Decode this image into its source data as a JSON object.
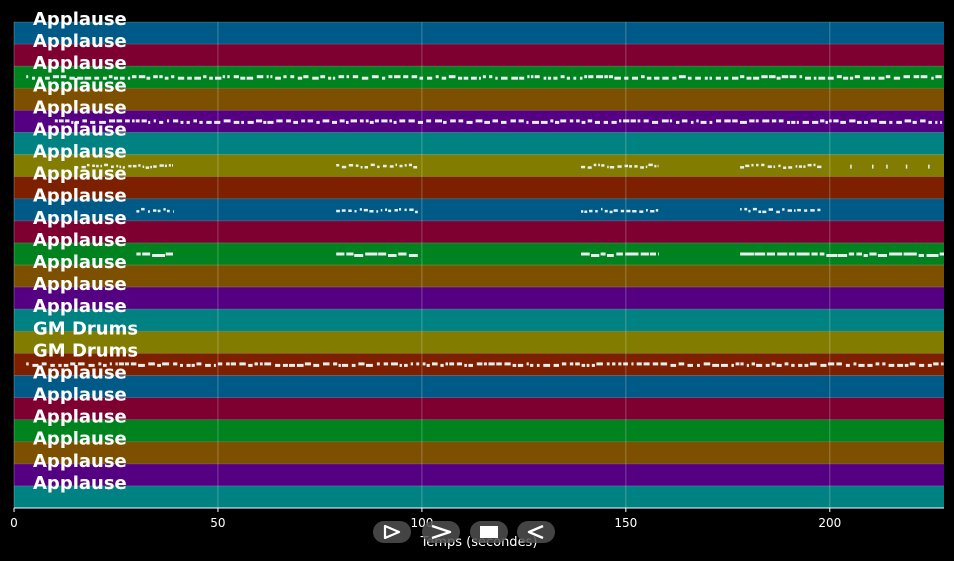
{
  "chart_data": {
    "type": "piano-roll",
    "xlabel": "Temps (secondes)",
    "xlim": [
      0,
      228
    ],
    "xticks": [
      0,
      50,
      100,
      150,
      200
    ],
    "tracks": [
      {
        "name": "Applause",
        "color": "#005a87"
      },
      {
        "name": "Applause",
        "color": "#7d0030"
      },
      {
        "name": "Applause",
        "color": "#00821e",
        "notes": [
          [
            3,
            228,
            "dense"
          ]
        ]
      },
      {
        "name": "Applause",
        "color": "#7d5000"
      },
      {
        "name": "Applause",
        "color": "#550082",
        "notes": [
          [
            10,
            228,
            "dense"
          ]
        ]
      },
      {
        "name": "Applause",
        "color": "#008282"
      },
      {
        "name": "Applause",
        "color": "#827d00",
        "notes": [
          [
            15,
            39,
            "sparse"
          ],
          [
            79,
            99,
            "sparse"
          ],
          [
            139,
            158,
            "sparse"
          ],
          [
            178,
            198,
            "sparse"
          ],
          [
            205,
            225,
            "dots"
          ]
        ]
      },
      {
        "name": "Applause",
        "color": "#7d2000"
      },
      {
        "name": "Applause",
        "color": "#005a87",
        "notes": [
          [
            30,
            39,
            "sparse"
          ],
          [
            79,
            99,
            "sparse"
          ],
          [
            139,
            158,
            "sparse"
          ],
          [
            178,
            198,
            "sparse"
          ]
        ]
      },
      {
        "name": "Applause",
        "color": "#7d0030"
      },
      {
        "name": "Applause",
        "color": "#00821e",
        "notes": [
          [
            30,
            39,
            "bars"
          ],
          [
            79,
            99,
            "bars"
          ],
          [
            139,
            158,
            "bars"
          ],
          [
            178,
            228,
            "bars"
          ]
        ]
      },
      {
        "name": "Applause",
        "color": "#7d5000"
      },
      {
        "name": "Applause",
        "color": "#550082"
      },
      {
        "name": "Applause",
        "color": "#008282"
      },
      {
        "name": "GM Drums",
        "color": "#827d00"
      },
      {
        "name": "GM Drums",
        "color": "#7d2000",
        "notes": [
          [
            3,
            228,
            "dense"
          ]
        ]
      },
      {
        "name": "Applause",
        "color": "#005a87"
      },
      {
        "name": "Applause",
        "color": "#7d0030"
      },
      {
        "name": "Applause",
        "color": "#00821e"
      },
      {
        "name": "Applause",
        "color": "#7d5000"
      },
      {
        "name": "Applause",
        "color": "#550082"
      },
      {
        "name": "Applause",
        "color": "#008282"
      }
    ]
  },
  "controls": [
    {
      "name": "play-button",
      "icon": "play-outline-icon"
    },
    {
      "name": "forward-button",
      "icon": "chevron-right-icon"
    },
    {
      "name": "stop-button",
      "icon": "stop-icon"
    },
    {
      "name": "rewind-button",
      "icon": "rewind-icon"
    }
  ]
}
